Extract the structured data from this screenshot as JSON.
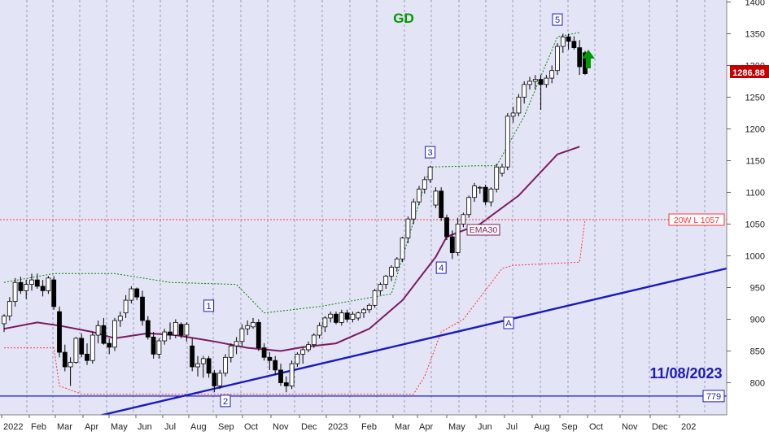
{
  "chart_data": {
    "type": "candlestick",
    "title": "GD",
    "date_label": "11/08/2023",
    "price_label": "1286.88",
    "ylim": [
      760,
      1400
    ],
    "y_ticks": [
      800,
      850,
      900,
      950,
      1000,
      1050,
      1100,
      1150,
      1200,
      1250,
      1300,
      1350,
      1400
    ],
    "x_ticks": [
      "2022",
      "Feb",
      "Mar",
      "Apr",
      "May",
      "Jun",
      "Jul",
      "Aug",
      "Sep",
      "Oct",
      "Nov",
      "Dec",
      "2023",
      "Feb",
      "Mar",
      "Apr",
      "May",
      "Jun",
      "Jul",
      "Aug",
      "Sep",
      "Oct",
      "Nov",
      "Dec",
      "202"
    ],
    "candles": [
      [
        893,
        908,
        880,
        905
      ],
      [
        905,
        935,
        898,
        928
      ],
      [
        928,
        965,
        920,
        958
      ],
      [
        958,
        967,
        940,
        945
      ],
      [
        945,
        962,
        932,
        955
      ],
      [
        955,
        972,
        945,
        962
      ],
      [
        962,
        972,
        948,
        952
      ],
      [
        952,
        962,
        936,
        945
      ],
      [
        945,
        968,
        940,
        965
      ],
      [
        962,
        968,
        915,
        920
      ],
      [
        912,
        920,
        840,
        848
      ],
      [
        848,
        860,
        818,
        825
      ],
      [
        825,
        840,
        795,
        832
      ],
      [
        832,
        872,
        830,
        870
      ],
      [
        870,
        878,
        840,
        845
      ],
      [
        845,
        862,
        828,
        835
      ],
      [
        835,
        880,
        830,
        875
      ],
      [
        875,
        898,
        862,
        890
      ],
      [
        890,
        902,
        860,
        862
      ],
      [
        862,
        870,
        845,
        856
      ],
      [
        856,
        902,
        850,
        898
      ],
      [
        898,
        912,
        888,
        905
      ],
      [
        910,
        938,
        902,
        930
      ],
      [
        930,
        952,
        925,
        948
      ],
      [
        948,
        950,
        930,
        935
      ],
      [
        935,
        945,
        890,
        898
      ],
      [
        898,
        905,
        868,
        872
      ],
      [
        872,
        880,
        838,
        845
      ],
      [
        845,
        870,
        838,
        866
      ],
      [
        866,
        885,
        860,
        880
      ],
      [
        880,
        895,
        868,
        875
      ],
      [
        875,
        900,
        870,
        895
      ],
      [
        892,
        895,
        870,
        875
      ],
      [
        875,
        895,
        865,
        892
      ],
      [
        858,
        870,
        818,
        825
      ],
      [
        825,
        842,
        810,
        830
      ],
      [
        830,
        842,
        808,
        838
      ],
      [
        838,
        842,
        808,
        815
      ],
      [
        815,
        820,
        785,
        795
      ],
      [
        795,
        820,
        790,
        815
      ],
      [
        815,
        845,
        810,
        840
      ],
      [
        840,
        862,
        832,
        858
      ],
      [
        858,
        872,
        845,
        865
      ],
      [
        865,
        892,
        858,
        885
      ],
      [
        885,
        898,
        875,
        890
      ],
      [
        888,
        902,
        885,
        895
      ],
      [
        895,
        900,
        850,
        855
      ],
      [
        855,
        862,
        835,
        840
      ],
      [
        840,
        848,
        820,
        835
      ],
      [
        835,
        842,
        812,
        820
      ],
      [
        820,
        830,
        795,
        800
      ],
      [
        800,
        810,
        785,
        795
      ],
      [
        795,
        835,
        790,
        830
      ],
      [
        830,
        848,
        825,
        845
      ],
      [
        845,
        856,
        830,
        852
      ],
      [
        852,
        865,
        848,
        860
      ],
      [
        860,
        878,
        855,
        875
      ],
      [
        875,
        895,
        870,
        890
      ],
      [
        888,
        905,
        880,
        902
      ],
      [
        902,
        912,
        895,
        908
      ],
      [
        908,
        912,
        892,
        895
      ],
      [
        895,
        915,
        890,
        910
      ],
      [
        910,
        915,
        895,
        900
      ],
      [
        900,
        912,
        895,
        908
      ],
      [
        902,
        912,
        898,
        910
      ],
      [
        910,
        918,
        902,
        915
      ],
      [
        915,
        925,
        910,
        922
      ],
      [
        922,
        948,
        918,
        945
      ],
      [
        945,
        958,
        938,
        955
      ],
      [
        955,
        970,
        948,
        968
      ],
      [
        968,
        985,
        960,
        982
      ],
      [
        982,
        998,
        975,
        995
      ],
      [
        995,
        1030,
        990,
        1028
      ],
      [
        1028,
        1062,
        1020,
        1058
      ],
      [
        1058,
        1090,
        1050,
        1085
      ],
      [
        1085,
        1110,
        1080,
        1105
      ],
      [
        1105,
        1125,
        1098,
        1120
      ],
      [
        1120,
        1142,
        1115,
        1140
      ],
      [
        1080,
        1108,
        1075,
        1102
      ],
      [
        1102,
        1108,
        1055,
        1060
      ],
      [
        1060,
        1065,
        1025,
        1030
      ],
      [
        1030,
        1040,
        995,
        1005
      ],
      [
        1005,
        1060,
        1000,
        1050
      ],
      [
        1050,
        1068,
        1045,
        1065
      ],
      [
        1065,
        1095,
        1060,
        1092
      ],
      [
        1092,
        1115,
        1085,
        1110
      ],
      [
        1108,
        1110,
        1098,
        1108
      ],
      [
        1108,
        1112,
        1080,
        1085
      ],
      [
        1085,
        1108,
        1078,
        1105
      ],
      [
        1105,
        1145,
        1100,
        1140
      ],
      [
        1130,
        1145,
        1125,
        1140
      ],
      [
        1140,
        1225,
        1135,
        1220
      ],
      [
        1220,
        1235,
        1210,
        1225
      ],
      [
        1225,
        1255,
        1220,
        1250
      ],
      [
        1250,
        1275,
        1240,
        1270
      ],
      [
        1270,
        1282,
        1262,
        1275
      ],
      [
        1275,
        1285,
        1262,
        1278
      ],
      [
        1278,
        1285,
        1230,
        1270
      ],
      [
        1270,
        1285,
        1265,
        1280
      ],
      [
        1280,
        1300,
        1272,
        1292
      ],
      [
        1292,
        1335,
        1285,
        1330
      ],
      [
        1330,
        1350,
        1320,
        1345
      ],
      [
        1345,
        1350,
        1325,
        1338
      ],
      [
        1338,
        1346,
        1325,
        1328
      ],
      [
        1328,
        1340,
        1285,
        1298
      ],
      [
        1320,
        1323,
        1285,
        1287
      ]
    ],
    "ema30": [
      [
        0,
        885
      ],
      [
        6,
        895
      ],
      [
        10,
        890
      ],
      [
        16,
        880
      ],
      [
        20,
        870
      ],
      [
        26,
        878
      ],
      [
        31,
        875
      ],
      [
        38,
        865
      ],
      [
        44,
        855
      ],
      [
        50,
        850
      ],
      [
        54,
        856
      ],
      [
        60,
        862
      ],
      [
        66,
        885
      ],
      [
        72,
        930
      ],
      [
        78,
        998
      ],
      [
        80,
        1030
      ],
      [
        86,
        1050
      ],
      [
        93,
        1095
      ],
      [
        100,
        1160
      ],
      [
        104,
        1172
      ]
    ],
    "lower_band": [
      [
        0,
        855
      ],
      [
        4,
        855
      ],
      [
        9,
        855
      ],
      [
        10,
        795
      ],
      [
        14,
        782
      ],
      [
        21,
        782
      ],
      [
        37,
        782
      ],
      [
        47,
        782
      ],
      [
        58,
        782
      ],
      [
        74,
        782
      ],
      [
        76,
        810
      ],
      [
        79,
        880
      ],
      [
        83,
        900
      ],
      [
        90,
        980
      ],
      [
        92,
        985
      ],
      [
        104,
        990
      ],
      [
        105,
        1058
      ]
    ],
    "upper_band": [
      [
        0,
        958
      ],
      [
        9,
        972
      ],
      [
        20,
        972
      ],
      [
        30,
        958
      ],
      [
        42,
        955
      ],
      [
        47,
        910
      ],
      [
        57,
        920
      ],
      [
        70,
        940
      ],
      [
        77,
        1140
      ],
      [
        86,
        1142
      ],
      [
        89,
        1142
      ],
      [
        94,
        1220
      ],
      [
        100,
        1345
      ],
      [
        104,
        1352
      ]
    ],
    "trendline_a": {
      "label": "A",
      "value_at_bar_0": 720,
      "slope_per_bar": 2.05
    },
    "support_779": {
      "label": "779",
      "value": 779
    },
    "resistance_20w": {
      "label": "20W L 1057",
      "value": 1057
    },
    "annotations": [
      {
        "label": "1",
        "bar": 37,
        "value": 920
      },
      {
        "label": "2",
        "bar": 40,
        "value": 770
      },
      {
        "label": "3",
        "bar": 77,
        "value": 1162
      },
      {
        "label": "4",
        "bar": 79,
        "value": 980
      },
      {
        "label": "5",
        "bar": 100,
        "value": 1371
      }
    ],
    "ema_label": "EMA30",
    "signal": {
      "direction": "up",
      "color": "#009900"
    },
    "colors": {
      "background": "#e4e4f7",
      "candle": "#000000",
      "ema": "#7a1a5e",
      "bands": "#ff3333",
      "upper": "#008800",
      "trendline": "#1a1abf",
      "title": "#009900",
      "date": "#1a1abf"
    }
  }
}
